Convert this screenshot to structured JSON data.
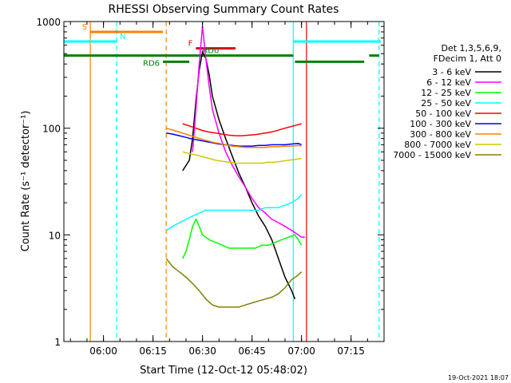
{
  "chart_data": {
    "type": "line",
    "title": "RHESSI Observing Summary Count Rates",
    "xlabel": "Start Time (12-Oct-12 05:48:02)",
    "ylabel": "Count Rate (s⁻¹ detector⁻¹)",
    "yscale": "log",
    "ylim": [
      1,
      1000
    ],
    "xlim_minutes": [
      0,
      97
    ],
    "x_ticks": [
      {
        "label": "06:00",
        "minutes": 12
      },
      {
        "label": "06:15",
        "minutes": 27
      },
      {
        "label": "06:30",
        "minutes": 42
      },
      {
        "label": "06:45",
        "minutes": 57
      },
      {
        "label": "07:00",
        "minutes": 72
      },
      {
        "label": "07:15",
        "minutes": 87
      }
    ],
    "y_ticks": [
      {
        "label": "1",
        "value": 1
      },
      {
        "label": "10",
        "value": 10
      },
      {
        "label": "100",
        "value": 100
      },
      {
        "label": "1000",
        "value": 1000
      }
    ],
    "legend_header": [
      "Det 1,3,5,6,9,",
      "FDecim 1, Att 0"
    ],
    "legend_position": "right",
    "series": [
      {
        "name": "3 - 6 keV",
        "color": "#000000",
        "points": [
          [
            36,
            40
          ],
          [
            38,
            50
          ],
          [
            39,
            80
          ],
          [
            40,
            180
          ],
          [
            41,
            350
          ],
          [
            42,
            520
          ],
          [
            43,
            450
          ],
          [
            44,
            320
          ],
          [
            45,
            200
          ],
          [
            47,
            120
          ],
          [
            49,
            80
          ],
          [
            51,
            55
          ],
          [
            53,
            38
          ],
          [
            55,
            28
          ],
          [
            57,
            20
          ],
          [
            59,
            15
          ],
          [
            61,
            12
          ],
          [
            63,
            9
          ],
          [
            65,
            6
          ],
          [
            67,
            4
          ],
          [
            69,
            3
          ],
          [
            70,
            2.5
          ]
        ]
      },
      {
        "name": "6 - 12 keV",
        "color": "#ff00ff",
        "points": [
          [
            39,
            60
          ],
          [
            40,
            150
          ],
          [
            41,
            400
          ],
          [
            42,
            900
          ],
          [
            43,
            450
          ],
          [
            44,
            250
          ],
          [
            45,
            150
          ],
          [
            47,
            90
          ],
          [
            49,
            60
          ],
          [
            51,
            45
          ],
          [
            53,
            35
          ],
          [
            55,
            28
          ],
          [
            57,
            22
          ],
          [
            59,
            18
          ],
          [
            61,
            16
          ],
          [
            63,
            14
          ],
          [
            65,
            13
          ],
          [
            67,
            12
          ],
          [
            69,
            11
          ],
          [
            71,
            10
          ],
          [
            72,
            9.5
          ],
          [
            73,
            9.5
          ]
        ]
      },
      {
        "name": "12 - 25 keV",
        "color": "#00ff00",
        "points": [
          [
            36,
            6
          ],
          [
            37,
            7
          ],
          [
            38,
            9
          ],
          [
            39,
            12
          ],
          [
            40,
            14
          ],
          [
            41,
            12
          ],
          [
            42,
            10
          ],
          [
            44,
            9
          ],
          [
            46,
            8.5
          ],
          [
            48,
            8
          ],
          [
            50,
            7.5
          ],
          [
            52,
            7.5
          ],
          [
            54,
            7.5
          ],
          [
            56,
            7.5
          ],
          [
            58,
            7.5
          ],
          [
            60,
            8
          ],
          [
            62,
            8
          ],
          [
            64,
            8.5
          ],
          [
            66,
            9
          ],
          [
            68,
            9.5
          ],
          [
            70,
            10
          ],
          [
            71,
            9
          ],
          [
            72,
            8
          ]
        ]
      },
      {
        "name": "25 - 50 keV",
        "color": "#00ffff",
        "points": [
          [
            31,
            11
          ],
          [
            33,
            12
          ],
          [
            35,
            13
          ],
          [
            37,
            14
          ],
          [
            39,
            15
          ],
          [
            41,
            16
          ],
          [
            43,
            17
          ],
          [
            45,
            17
          ],
          [
            47,
            17
          ],
          [
            49,
            17
          ],
          [
            51,
            17
          ],
          [
            53,
            17
          ],
          [
            55,
            17
          ],
          [
            57,
            17
          ],
          [
            59,
            17
          ],
          [
            61,
            18
          ],
          [
            63,
            18
          ],
          [
            65,
            18
          ],
          [
            67,
            19
          ],
          [
            69,
            20
          ],
          [
            71,
            22
          ],
          [
            72,
            24
          ]
        ]
      },
      {
        "name": "50 - 100 keV",
        "color": "#ff0000",
        "points": [
          [
            36,
            110
          ],
          [
            38,
            105
          ],
          [
            40,
            100
          ],
          [
            42,
            95
          ],
          [
            44,
            92
          ],
          [
            46,
            90
          ],
          [
            48,
            88
          ],
          [
            50,
            86
          ],
          [
            52,
            85
          ],
          [
            54,
            85
          ],
          [
            56,
            86
          ],
          [
            58,
            87
          ],
          [
            60,
            89
          ],
          [
            62,
            91
          ],
          [
            64,
            94
          ],
          [
            66,
            98
          ],
          [
            68,
            102
          ],
          [
            70,
            106
          ],
          [
            72,
            110
          ]
        ]
      },
      {
        "name": "100 - 300 keV",
        "color": "#0000ff",
        "points": [
          [
            31,
            90
          ],
          [
            33,
            88
          ],
          [
            35,
            85
          ],
          [
            37,
            82
          ],
          [
            39,
            79
          ],
          [
            41,
            77
          ],
          [
            43,
            75
          ],
          [
            45,
            73
          ],
          [
            47,
            71
          ],
          [
            49,
            70
          ],
          [
            51,
            69
          ],
          [
            53,
            68
          ],
          [
            55,
            68
          ],
          [
            57,
            68
          ],
          [
            59,
            69
          ],
          [
            61,
            69
          ],
          [
            63,
            70
          ],
          [
            65,
            70
          ],
          [
            67,
            70
          ],
          [
            69,
            71
          ],
          [
            71,
            72
          ],
          [
            72,
            70
          ]
        ]
      },
      {
        "name": "300 - 800 keV",
        "color": "#ff8000",
        "points": [
          [
            31,
            100
          ],
          [
            33,
            96
          ],
          [
            35,
            92
          ],
          [
            37,
            88
          ],
          [
            39,
            84
          ],
          [
            41,
            80
          ],
          [
            43,
            77
          ],
          [
            45,
            74
          ],
          [
            47,
            72
          ],
          [
            49,
            70
          ],
          [
            51,
            68
          ],
          [
            53,
            67
          ],
          [
            55,
            66
          ],
          [
            57,
            66
          ],
          [
            59,
            66
          ],
          [
            61,
            66
          ],
          [
            63,
            67
          ],
          [
            65,
            67
          ],
          [
            67,
            68
          ],
          [
            69,
            68
          ],
          [
            71,
            69
          ],
          [
            72,
            68
          ]
        ]
      },
      {
        "name": "800 - 7000 keV",
        "color": "#cccc00",
        "points": [
          [
            36,
            60
          ],
          [
            38,
            58
          ],
          [
            40,
            56
          ],
          [
            42,
            54
          ],
          [
            44,
            52
          ],
          [
            46,
            50
          ],
          [
            48,
            49
          ],
          [
            50,
            48
          ],
          [
            52,
            47
          ],
          [
            54,
            47
          ],
          [
            56,
            47
          ],
          [
            58,
            47
          ],
          [
            60,
            47
          ],
          [
            62,
            48
          ],
          [
            64,
            48
          ],
          [
            66,
            49
          ],
          [
            68,
            50
          ],
          [
            70,
            51
          ],
          [
            72,
            52
          ]
        ]
      },
      {
        "name": "7000 - 15000 keV",
        "color": "#808000",
        "points": [
          [
            31,
            6
          ],
          [
            33,
            5
          ],
          [
            35,
            4.5
          ],
          [
            37,
            4
          ],
          [
            39,
            3.5
          ],
          [
            41,
            3
          ],
          [
            43,
            2.5
          ],
          [
            45,
            2.2
          ],
          [
            47,
            2.1
          ],
          [
            49,
            2.1
          ],
          [
            51,
            2.1
          ],
          [
            53,
            2.1
          ],
          [
            55,
            2.2
          ],
          [
            57,
            2.3
          ],
          [
            59,
            2.4
          ],
          [
            61,
            2.5
          ],
          [
            63,
            2.6
          ],
          [
            65,
            2.8
          ],
          [
            67,
            3.2
          ],
          [
            69,
            3.8
          ],
          [
            71,
            4.2
          ],
          [
            72,
            4.5
          ]
        ]
      }
    ],
    "state_bars": [
      {
        "label": "S",
        "color": "#ff8000",
        "level": 800,
        "segments": [
          [
            8,
            30
          ]
        ]
      },
      {
        "label": "N",
        "color": "#00ffff",
        "level": 650,
        "segments": [
          [
            0,
            16
          ],
          [
            69.5,
            96
          ]
        ]
      },
      {
        "label": "F",
        "color": "#e00000",
        "level": 560,
        "segments": [
          [
            40,
            52
          ]
        ]
      },
      {
        "label": "RD0",
        "color": "#008000",
        "level": 480,
        "segments": [
          [
            0,
            69.5
          ],
          [
            92.5,
            95.5
          ]
        ]
      },
      {
        "label": "RD6",
        "color": "#008000",
        "level": 420,
        "segments": [
          [
            30,
            38
          ],
          [
            70,
            91
          ]
        ]
      }
    ],
    "vertical_markers": [
      {
        "minutes": 8,
        "color": "#ff8000",
        "style": "solid"
      },
      {
        "minutes": 16,
        "color": "#00ffff",
        "style": "dashed"
      },
      {
        "minutes": 31,
        "color": "#ff8000",
        "style": "dashed"
      },
      {
        "minutes": 69.5,
        "color": "#00ffff",
        "style": "solid"
      },
      {
        "minutes": 73.5,
        "color": "#e00000",
        "style": "solid"
      },
      {
        "minutes": 95.5,
        "color": "#00ffff",
        "style": "dashed"
      }
    ],
    "footer_date": "19-Oct-2021 18:07"
  }
}
